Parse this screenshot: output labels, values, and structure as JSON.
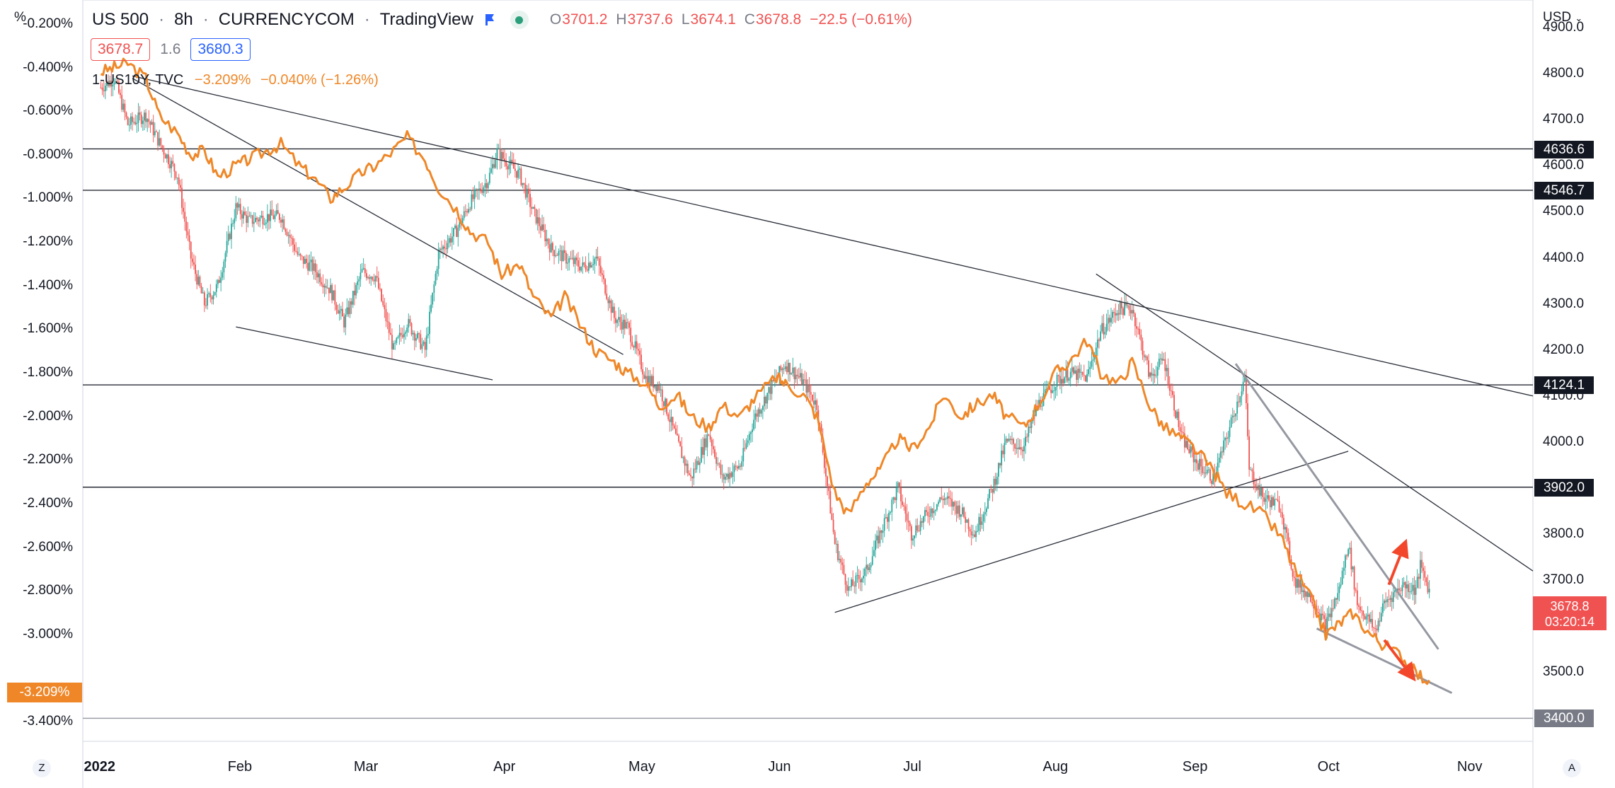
{
  "header": {
    "symbol": "US 500",
    "interval": "8h",
    "exchange": "CURRENCYCOM",
    "platform": "TradingView",
    "separator": "·",
    "ohlc": [
      {
        "k": "O",
        "v": "3701.2"
      },
      {
        "k": "H",
        "v": "3737.6"
      },
      {
        "k": "L",
        "v": "3674.1"
      },
      {
        "k": "C",
        "v": "3678.8"
      }
    ],
    "change": "−22.5 (−0.61%)",
    "bid": "3678.7",
    "spread": "1.6",
    "ask": "3680.3"
  },
  "overlay": {
    "name": "1-US10Y, TVC",
    "value": "−3.209%",
    "change": "−0.040% (−1.26%)"
  },
  "axes": {
    "left_unit": "%",
    "right_unit": "USD",
    "left_ticks": [
      "-0.200%",
      "-0.400%",
      "-0.600%",
      "-0.800%",
      "-1.000%",
      "-1.200%",
      "-1.400%",
      "-1.600%",
      "-1.800%",
      "-2.000%",
      "-2.200%",
      "-2.400%",
      "-2.600%",
      "-2.800%",
      "-3.000%",
      "-3.400%"
    ],
    "right_ticks": [
      "4900.0",
      "4800.0",
      "4700.0",
      "4600.0",
      "4500.0",
      "4400.0",
      "4300.0",
      "4200.0",
      "4100.0",
      "4000.0",
      "3900.0",
      "3800.0",
      "3700.0",
      "3600.0",
      "3500.0"
    ],
    "months": [
      "2022",
      "Feb",
      "Mar",
      "Apr",
      "May",
      "Jun",
      "Jul",
      "Aug",
      "Sep",
      "Oct",
      "Nov"
    ],
    "left_tag": "-3.209%",
    "current_price": "3678.8",
    "countdown": "03:20:14",
    "bottom_left_btn": "Z",
    "bottom_right_btn": "A"
  },
  "chart_data": {
    "type": "line",
    "title": "US 500 · 8h · CURRENCYCOM",
    "x_range": [
      "2021-12-28",
      "2022-11-15"
    ],
    "y_right_range": [
      3350,
      4960
    ],
    "y_left_range": [
      -3.49,
      -0.09
    ],
    "levels": [
      {
        "price": 4636.6,
        "label": "4636.6"
      },
      {
        "price": 4546.7,
        "label": "4546.7"
      },
      {
        "price": 4124.1,
        "label": "4124.1"
      },
      {
        "price": 3902.0,
        "label": "3902.0"
      },
      {
        "price": 3400.0,
        "label": "3400.0"
      }
    ],
    "series": [
      {
        "name": "US 500",
        "style": "candles",
        "points": [
          [
            "2022-01-01",
            4770
          ],
          [
            "2022-01-04",
            4790
          ],
          [
            "2022-01-07",
            4690
          ],
          [
            "2022-01-11",
            4710
          ],
          [
            "2022-01-14",
            4650
          ],
          [
            "2022-01-18",
            4580
          ],
          [
            "2022-01-21",
            4400
          ],
          [
            "2022-01-24",
            4300
          ],
          [
            "2022-01-27",
            4340
          ],
          [
            "2022-01-31",
            4510
          ],
          [
            "2022-02-03",
            4480
          ],
          [
            "2022-02-07",
            4490
          ],
          [
            "2022-02-10",
            4490
          ],
          [
            "2022-02-14",
            4400
          ],
          [
            "2022-02-17",
            4380
          ],
          [
            "2022-02-21",
            4330
          ],
          [
            "2022-02-24",
            4260
          ],
          [
            "2022-02-28",
            4370
          ],
          [
            "2022-03-03",
            4360
          ],
          [
            "2022-03-07",
            4200
          ],
          [
            "2022-03-10",
            4260
          ],
          [
            "2022-03-14",
            4200
          ],
          [
            "2022-03-17",
            4410
          ],
          [
            "2022-03-21",
            4460
          ],
          [
            "2022-03-24",
            4520
          ],
          [
            "2022-03-28",
            4570
          ],
          [
            "2022-03-30",
            4630
          ],
          [
            "2022-04-04",
            4580
          ],
          [
            "2022-04-07",
            4500
          ],
          [
            "2022-04-11",
            4420
          ],
          [
            "2022-04-14",
            4400
          ],
          [
            "2022-04-18",
            4380
          ],
          [
            "2022-04-21",
            4400
          ],
          [
            "2022-04-25",
            4270
          ],
          [
            "2022-04-28",
            4250
          ],
          [
            "2022-05-02",
            4140
          ],
          [
            "2022-05-05",
            4120
          ],
          [
            "2022-05-09",
            4000
          ],
          [
            "2022-05-12",
            3920
          ],
          [
            "2022-05-16",
            4020
          ],
          [
            "2022-05-19",
            3920
          ],
          [
            "2022-05-23",
            3950
          ],
          [
            "2022-05-26",
            4050
          ],
          [
            "2022-05-31",
            4140
          ],
          [
            "2022-06-02",
            4170
          ],
          [
            "2022-06-06",
            4130
          ],
          [
            "2022-06-09",
            4080
          ],
          [
            "2022-06-13",
            3780
          ],
          [
            "2022-06-16",
            3680
          ],
          [
            "2022-06-20",
            3720
          ],
          [
            "2022-06-23",
            3800
          ],
          [
            "2022-06-27",
            3900
          ],
          [
            "2022-06-30",
            3800
          ],
          [
            "2022-07-04",
            3850
          ],
          [
            "2022-07-07",
            3880
          ],
          [
            "2022-07-11",
            3850
          ],
          [
            "2022-07-14",
            3800
          ],
          [
            "2022-07-18",
            3900
          ],
          [
            "2022-07-21",
            4000
          ],
          [
            "2022-07-25",
            3990
          ],
          [
            "2022-07-28",
            4080
          ],
          [
            "2022-08-01",
            4130
          ],
          [
            "2022-08-04",
            4150
          ],
          [
            "2022-08-08",
            4140
          ],
          [
            "2022-08-11",
            4240
          ],
          [
            "2022-08-15",
            4290
          ],
          [
            "2022-08-18",
            4290
          ],
          [
            "2022-08-22",
            4140
          ],
          [
            "2022-08-25",
            4180
          ],
          [
            "2022-08-29",
            4010
          ],
          [
            "2022-09-01",
            3960
          ],
          [
            "2022-09-05",
            3920
          ],
          [
            "2022-09-08",
            4010
          ],
          [
            "2022-09-12",
            4140
          ],
          [
            "2022-09-13",
            3940
          ],
          [
            "2022-09-16",
            3880
          ],
          [
            "2022-09-20",
            3860
          ],
          [
            "2022-09-23",
            3700
          ],
          [
            "2022-09-27",
            3660
          ],
          [
            "2022-09-30",
            3600
          ],
          [
            "2022-10-03",
            3680
          ],
          [
            "2022-10-05",
            3780
          ],
          [
            "2022-10-07",
            3650
          ],
          [
            "2022-10-11",
            3590
          ],
          [
            "2022-10-13",
            3650
          ],
          [
            "2022-10-17",
            3690
          ],
          [
            "2022-10-20",
            3680
          ],
          [
            "2022-10-21",
            3730
          ],
          [
            "2022-10-23",
            3679
          ]
        ]
      },
      {
        "name": "1-US10Y, TVC",
        "style": "line",
        "axis": "left",
        "points": [
          [
            "2022-01-01",
            -0.42
          ],
          [
            "2022-01-04",
            -0.4
          ],
          [
            "2022-01-07",
            -0.38
          ],
          [
            "2022-01-11",
            -0.45
          ],
          [
            "2022-01-14",
            -0.62
          ],
          [
            "2022-01-18",
            -0.7
          ],
          [
            "2022-01-21",
            -0.8
          ],
          [
            "2022-01-24",
            -0.78
          ],
          [
            "2022-01-27",
            -0.9
          ],
          [
            "2022-01-31",
            -0.85
          ],
          [
            "2022-02-03",
            -0.82
          ],
          [
            "2022-02-07",
            -0.78
          ],
          [
            "2022-02-10",
            -0.75
          ],
          [
            "2022-02-14",
            -0.85
          ],
          [
            "2022-02-17",
            -0.9
          ],
          [
            "2022-02-21",
            -1.0
          ],
          [
            "2022-02-24",
            -0.95
          ],
          [
            "2022-02-28",
            -0.88
          ],
          [
            "2022-03-03",
            -0.85
          ],
          [
            "2022-03-07",
            -0.78
          ],
          [
            "2022-03-10",
            -0.72
          ],
          [
            "2022-03-14",
            -0.82
          ],
          [
            "2022-03-17",
            -0.95
          ],
          [
            "2022-03-21",
            -1.05
          ],
          [
            "2022-03-24",
            -1.15
          ],
          [
            "2022-03-28",
            -1.2
          ],
          [
            "2022-03-31",
            -1.35
          ],
          [
            "2022-04-04",
            -1.3
          ],
          [
            "2022-04-07",
            -1.45
          ],
          [
            "2022-04-11",
            -1.55
          ],
          [
            "2022-04-14",
            -1.45
          ],
          [
            "2022-04-18",
            -1.6
          ],
          [
            "2022-04-21",
            -1.7
          ],
          [
            "2022-04-25",
            -1.75
          ],
          [
            "2022-04-28",
            -1.8
          ],
          [
            "2022-05-02",
            -1.85
          ],
          [
            "2022-05-05",
            -1.95
          ],
          [
            "2022-05-09",
            -1.9
          ],
          [
            "2022-05-12",
            -2.0
          ],
          [
            "2022-05-16",
            -2.05
          ],
          [
            "2022-05-19",
            -1.95
          ],
          [
            "2022-05-23",
            -2.0
          ],
          [
            "2022-05-26",
            -1.92
          ],
          [
            "2022-05-31",
            -1.82
          ],
          [
            "2022-06-02",
            -1.85
          ],
          [
            "2022-06-06",
            -1.9
          ],
          [
            "2022-06-09",
            -2.0
          ],
          [
            "2022-06-13",
            -2.35
          ],
          [
            "2022-06-16",
            -2.45
          ],
          [
            "2022-06-20",
            -2.3
          ],
          [
            "2022-06-23",
            -2.25
          ],
          [
            "2022-06-27",
            -2.1
          ],
          [
            "2022-06-30",
            -2.15
          ],
          [
            "2022-07-04",
            -2.05
          ],
          [
            "2022-07-07",
            -1.9
          ],
          [
            "2022-07-11",
            -2.0
          ],
          [
            "2022-07-14",
            -1.95
          ],
          [
            "2022-07-18",
            -1.9
          ],
          [
            "2022-07-21",
            -2.0
          ],
          [
            "2022-07-25",
            -2.05
          ],
          [
            "2022-07-28",
            -1.95
          ],
          [
            "2022-08-01",
            -1.8
          ],
          [
            "2022-08-04",
            -1.75
          ],
          [
            "2022-08-08",
            -1.65
          ],
          [
            "2022-08-11",
            -1.8
          ],
          [
            "2022-08-15",
            -1.85
          ],
          [
            "2022-08-18",
            -1.75
          ],
          [
            "2022-08-22",
            -1.95
          ],
          [
            "2022-08-25",
            -2.05
          ],
          [
            "2022-08-29",
            -2.1
          ],
          [
            "2022-09-01",
            -2.15
          ],
          [
            "2022-09-05",
            -2.25
          ],
          [
            "2022-09-08",
            -2.35
          ],
          [
            "2022-09-12",
            -2.4
          ],
          [
            "2022-09-16",
            -2.45
          ],
          [
            "2022-09-20",
            -2.55
          ],
          [
            "2022-09-23",
            -2.7
          ],
          [
            "2022-09-27",
            -2.85
          ],
          [
            "2022-09-30",
            -3.0
          ],
          [
            "2022-10-03",
            -2.95
          ],
          [
            "2022-10-06",
            -2.9
          ],
          [
            "2022-10-10",
            -3.0
          ],
          [
            "2022-10-13",
            -3.05
          ],
          [
            "2022-10-17",
            -3.1
          ],
          [
            "2022-10-20",
            -3.18
          ],
          [
            "2022-10-23",
            -3.21
          ]
        ]
      }
    ],
    "trendlines": [
      {
        "from": [
          "2022-01-08",
          4790
        ],
        "to": [
          "2022-04-27",
          4190
        ]
      },
      {
        "from": [
          "2022-01-08",
          4795
        ],
        "to": [
          "2022-11-15",
          4100
        ]
      },
      {
        "from": [
          "2022-01-31",
          4250
        ],
        "to": [
          "2022-03-29",
          4135
        ]
      },
      {
        "from": [
          "2022-06-13",
          3630
        ],
        "to": [
          "2022-10-05",
          3980
        ]
      },
      {
        "from": [
          "2022-08-10",
          4365
        ],
        "to": [
          "2022-11-15",
          3720
        ]
      },
      {
        "from": [
          "2022-09-10",
          4170
        ],
        "to": [
          "2022-10-25",
          3550
        ]
      },
      {
        "from": [
          "2022-09-28",
          3595
        ],
        "to": [
          "2022-10-28",
          3455
        ]
      }
    ],
    "arrows": [
      {
        "from": [
          "2022-10-14",
          3690
        ],
        "to": [
          "2022-10-18",
          3790
        ],
        "color": "#f2472b"
      },
      {
        "from": [
          "2022-10-13",
          3570
        ],
        "to": [
          "2022-10-20",
          3480
        ],
        "color": "#f2472b"
      }
    ],
    "colors": {
      "up": "#26a69a",
      "down": "#ef5350",
      "yield_line": "#ef8728",
      "price_tag": "#f05252",
      "arrow": "#f2472b"
    }
  }
}
